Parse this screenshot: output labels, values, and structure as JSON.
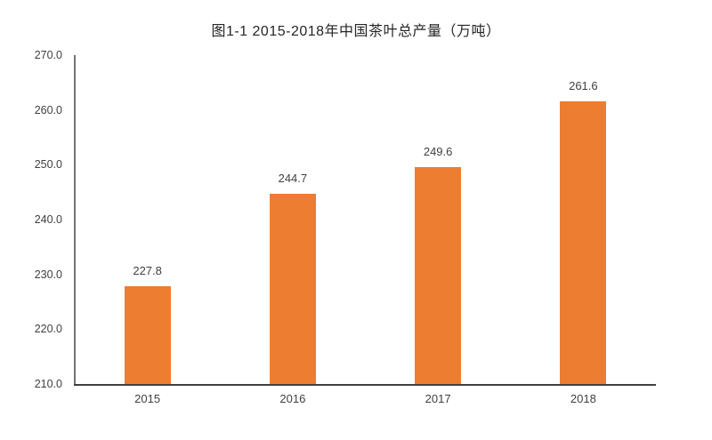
{
  "page": {
    "background_color": "#ffffff"
  },
  "chart_data": {
    "type": "bar",
    "title": "图1-1 2015-2018年中国茶叶总产量（万吨）",
    "categories": [
      "2015",
      "2016",
      "2017",
      "2018"
    ],
    "values": [
      227.8,
      244.7,
      249.6,
      261.6
    ],
    "value_labels": [
      "227.8",
      "244.7",
      "249.6",
      "261.6"
    ],
    "xlabel": "",
    "ylabel": "",
    "ylim": [
      210.0,
      270.0
    ],
    "ytick_step": 10,
    "ytick_labels": [
      "270.0",
      "260.0",
      "250.0",
      "240.0",
      "230.0",
      "220.0",
      "210.0"
    ],
    "grid": false,
    "legend": "none",
    "bar_color": "#ED7D31",
    "y_axis_color": "#737373",
    "x_axis_color": "#404040",
    "label_color": "#404040",
    "title_color": "#262626"
  }
}
